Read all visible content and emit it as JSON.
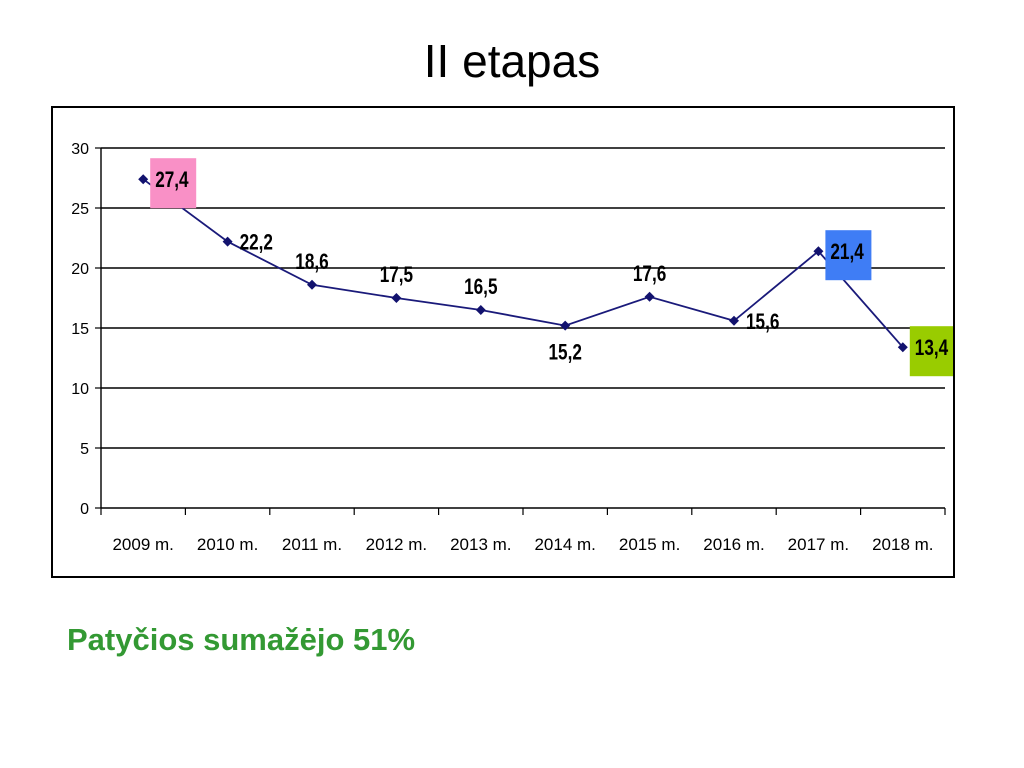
{
  "slide": {
    "title": "II etapas",
    "caption": "Patyčios sumažėjo 51%"
  },
  "colors": {
    "line": "#1a1a7a",
    "marker": "#12126e",
    "grid": "#000000",
    "caption": "#339933",
    "highlight_pink": "#f990c6",
    "highlight_blue": "#3f7df5",
    "highlight_green": "#99cc00"
  },
  "chart_data": {
    "type": "line",
    "categories": [
      "2009 m.",
      "2010 m.",
      "2011 m.",
      "2012 m.",
      "2013 m.",
      "2014 m.",
      "2015 m.",
      "2016 m.",
      "2017 m.",
      "2018 m."
    ],
    "values": [
      27.4,
      22.2,
      18.6,
      17.5,
      16.5,
      15.2,
      17.6,
      15.6,
      21.4,
      13.4
    ],
    "data_labels": [
      "27,4",
      "22,2",
      "18,6",
      "17,5",
      "16,5",
      "15,2",
      "17,6",
      "15,6",
      "21,4",
      "13,4"
    ],
    "label_position": [
      "right",
      "right",
      "above",
      "above",
      "above",
      "below",
      "above",
      "right",
      "right",
      "right"
    ],
    "label_highlight": [
      "pink",
      "",
      "",
      "",
      "",
      "",
      "",
      "",
      "blue",
      "green"
    ],
    "y_ticks": [
      "0",
      "5",
      "10",
      "15",
      "20",
      "25",
      "30"
    ],
    "ylim": [
      0,
      30
    ],
    "y_step": 5,
    "grid": true,
    "legend": "none"
  }
}
